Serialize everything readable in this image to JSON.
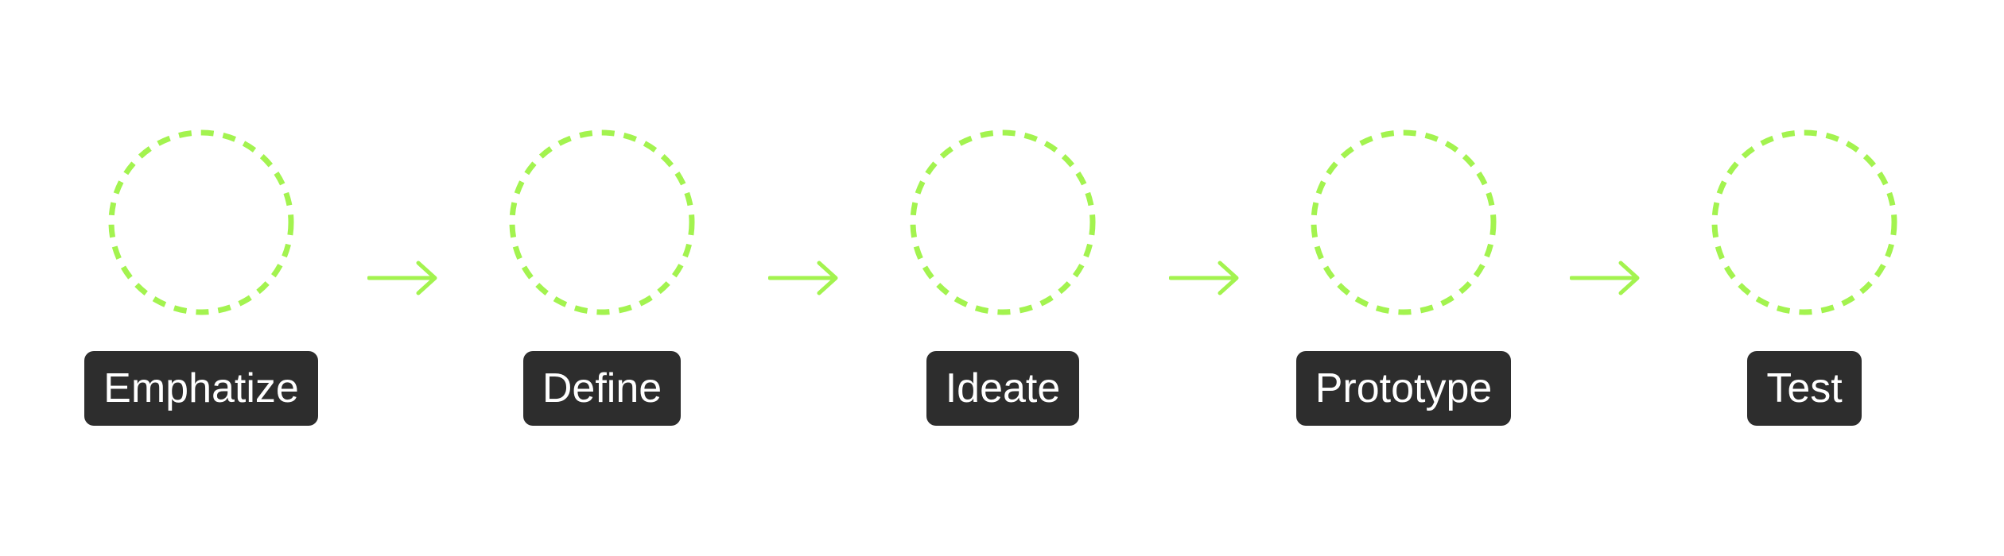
{
  "colors": {
    "ring": "#a3f34f",
    "arrow": "#a3f34f",
    "label_bg": "#2d2d2d",
    "label_text": "#ffffff",
    "background": "#ffffff"
  },
  "steps": [
    {
      "label": "Emphatize"
    },
    {
      "label": "Define"
    },
    {
      "label": "Ideate"
    },
    {
      "label": "Prototype"
    },
    {
      "label": "Test"
    }
  ]
}
